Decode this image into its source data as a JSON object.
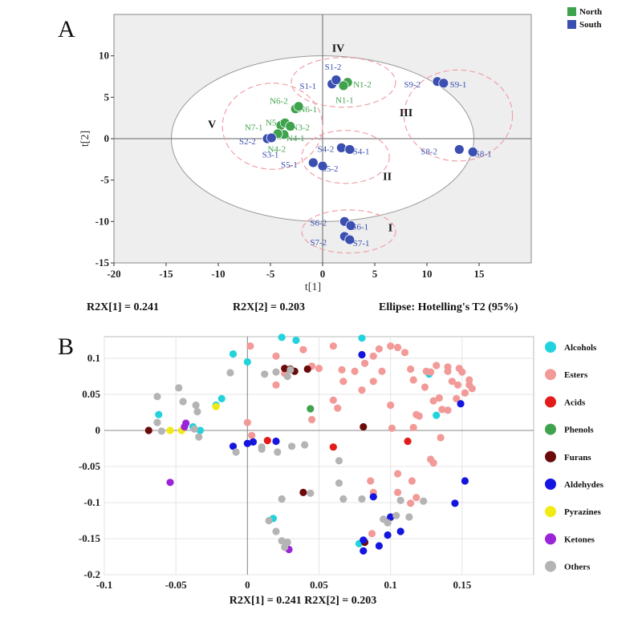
{
  "chart_data": [
    {
      "panel": "A",
      "type": "scatter",
      "xlabel": "t[1]",
      "ylabel": "t[2]",
      "xlim": [
        -20,
        20
      ],
      "ylim": [
        -15,
        15
      ],
      "xticks": [
        -20,
        -15,
        -10,
        -5,
        0,
        5,
        10,
        15
      ],
      "yticks": [
        -15,
        -10,
        -5,
        0,
        5,
        10
      ],
      "legend": {
        "placement": "top-right",
        "entries": [
          {
            "name": "North",
            "color": "#3fa34d"
          },
          {
            "name": "South",
            "color": "#3a4fb0"
          }
        ]
      },
      "ellipse": {
        "center": [
          0,
          0
        ],
        "rx": 14.5,
        "ry": 10
      },
      "stats": [
        "R2X[1] = 0.241",
        "R2X[2] = 0.203",
        "Ellipse: Hotelling's T2 (95%)"
      ],
      "groups": [
        {
          "name": "I",
          "cx": 2.5,
          "cy": -11.2,
          "rx": 4.5,
          "ry": 2.6,
          "label": [
            6.5,
            -11.2
          ]
        },
        {
          "name": "II",
          "cx": 2.2,
          "cy": -2.2,
          "rx": 4.2,
          "ry": 3.2,
          "label": [
            6.2,
            -5
          ]
        },
        {
          "name": "III",
          "cx": 13,
          "cy": 2.8,
          "rx": 5.2,
          "ry": 5.5,
          "label": [
            8,
            2.7
          ]
        },
        {
          "name": "IV",
          "cx": 2,
          "cy": 6.8,
          "rx": 5,
          "ry": 3,
          "label": [
            1.5,
            10.5
          ]
        },
        {
          "name": "V",
          "cx": -4.8,
          "cy": 1.5,
          "rx": 4.8,
          "ry": 5.2,
          "label": [
            -10.6,
            1.3
          ]
        }
      ],
      "points": [
        {
          "id": "S1-1",
          "group": "South",
          "x": 0.9,
          "y": 6.6,
          "lx": -1.4,
          "ly": 6.4
        },
        {
          "id": "S1-2",
          "group": "South",
          "x": 1.3,
          "y": 7.1,
          "lx": 1,
          "ly": 8.7
        },
        {
          "id": "N1-2",
          "group": "North",
          "x": 2.4,
          "y": 6.8,
          "lx": 3.8,
          "ly": 6.6
        },
        {
          "id": "N1-1",
          "group": "North",
          "x": 2.0,
          "y": 6.4,
          "lx": 2.1,
          "ly": 4.7
        },
        {
          "id": "S9-2",
          "group": "South",
          "x": 11,
          "y": 6.9,
          "lx": 8.6,
          "ly": 6.6
        },
        {
          "id": "S9-1",
          "group": "South",
          "x": 11.6,
          "y": 6.7,
          "lx": 13,
          "ly": 6.6
        },
        {
          "id": "N6-2",
          "group": "North",
          "x": -2.6,
          "y": 3.6,
          "lx": -4.2,
          "ly": 4.6
        },
        {
          "id": "N6-1",
          "group": "North",
          "x": -2.3,
          "y": 3.9,
          "lx": -1.4,
          "ly": 3.6
        },
        {
          "id": "N7-1",
          "group": "North",
          "x": -4.0,
          "y": 1.6,
          "lx": -6.6,
          "ly": 1.4
        },
        {
          "id": "N5-1",
          "group": "North",
          "x": -3.6,
          "y": 1.9,
          "lx": -4.6,
          "ly": 2.0
        },
        {
          "id": "N3-2",
          "group": "North",
          "x": -3.1,
          "y": 1.5,
          "lx": -2.1,
          "ly": 1.4
        },
        {
          "id": "N4-1",
          "group": "North",
          "x": -3.7,
          "y": 0.5,
          "lx": -2.6,
          "ly": 0.1
        },
        {
          "id": "N4-2",
          "group": "North",
          "x": -4.3,
          "y": 0.6,
          "lx": -4.4,
          "ly": -1.2
        },
        {
          "id": "S2-2",
          "group": "South",
          "x": -5.3,
          "y": 0.0,
          "lx": -7.2,
          "ly": -0.3
        },
        {
          "id": "S3-1",
          "group": "South",
          "x": -4.9,
          "y": 0.1,
          "lx": -5.0,
          "ly": -1.9
        },
        {
          "id": "S4-2",
          "group": "South",
          "x": 1.8,
          "y": -1.1,
          "lx": 0.3,
          "ly": -1.2
        },
        {
          "id": "S4-1",
          "group": "South",
          "x": 2.6,
          "y": -1.3,
          "lx": 3.7,
          "ly": -1.5
        },
        {
          "id": "S5-1",
          "group": "South",
          "x": -0.9,
          "y": -2.9,
          "lx": -3.2,
          "ly": -3.1
        },
        {
          "id": "S5-2",
          "group": "South",
          "x": 0.0,
          "y": -3.3,
          "lx": 0.7,
          "ly": -3.6
        },
        {
          "id": "S8-2",
          "group": "South",
          "x": 13.1,
          "y": -1.3,
          "lx": 10.2,
          "ly": -1.5
        },
        {
          "id": "S8-1",
          "group": "South",
          "x": 14.4,
          "y": -1.6,
          "lx": 15.4,
          "ly": -1.8
        },
        {
          "id": "S6-2",
          "group": "South",
          "x": 2.1,
          "y": -10.0,
          "lx": -0.4,
          "ly": -10.1
        },
        {
          "id": "S6-1",
          "group": "South",
          "x": 2.7,
          "y": -10.5,
          "lx": 3.6,
          "ly": -10.6
        },
        {
          "id": "S7-2",
          "group": "South",
          "x": 2.1,
          "y": -11.8,
          "lx": -0.4,
          "ly": -12.5
        },
        {
          "id": "S7-1",
          "group": "South",
          "x": 2.6,
          "y": -12.2,
          "lx": 3.7,
          "ly": -12.6
        }
      ]
    },
    {
      "panel": "B",
      "type": "scatter",
      "xlabel": "R2X[1] = 0.241 R2X[2] = 0.203",
      "ylabel": "",
      "xlim": [
        -0.1,
        0.2
      ],
      "ylim": [
        -0.2,
        0.13
      ],
      "xticks": [
        -0.1,
        -0.05,
        0,
        0.05,
        0.1,
        0.15
      ],
      "yticks": [
        -0.2,
        -0.15,
        -0.1,
        -0.05,
        0,
        0.05,
        0.1
      ],
      "legend": {
        "placement": "right",
        "entries": [
          {
            "name": "Alcohols",
            "color": "#22d3dd"
          },
          {
            "name": "Esters",
            "color": "#f29a98"
          },
          {
            "name": "Acids",
            "color": "#e41b1b"
          },
          {
            "name": "Phenols",
            "color": "#3fa34d"
          },
          {
            "name": "Furans",
            "color": "#6b0a0a"
          },
          {
            "name": "Aldehydes",
            "color": "#1515e0"
          },
          {
            "name": "Pyrazines",
            "color": "#f2ea13"
          },
          {
            "name": "Ketones",
            "color": "#9a25d8"
          },
          {
            "name": "Others",
            "color": "#b4b4b4"
          }
        ]
      },
      "series": [
        {
          "name": "Alcohols",
          "points": [
            [
              0.024,
              0.129
            ],
            [
              0.034,
              0.125
            ],
            [
              0.08,
              0.128
            ],
            [
              -0.01,
              0.106
            ],
            [
              0.0,
              0.095
            ],
            [
              -0.018,
              0.044
            ],
            [
              -0.022,
              0.035
            ],
            [
              -0.062,
              0.022
            ],
            [
              -0.038,
              0.005
            ],
            [
              -0.033,
              0.0
            ],
            [
              0.018,
              -0.122
            ],
            [
              0.078,
              -0.157
            ],
            [
              0.127,
              0.078
            ],
            [
              0.132,
              0.021
            ]
          ]
        },
        {
          "name": "Esters",
          "points": [
            [
              0.002,
              0.117
            ],
            [
              0.02,
              0.103
            ],
            [
              0.039,
              0.112
            ],
            [
              0.06,
              0.117
            ],
            [
              0.088,
              0.103
            ],
            [
              0.092,
              0.113
            ],
            [
              0.1,
              0.117
            ],
            [
              0.105,
              0.115
            ],
            [
              0.11,
              0.108
            ],
            [
              0.114,
              0.085
            ],
            [
              0.116,
              0.07
            ],
            [
              0.125,
              0.082
            ],
            [
              0.132,
              0.09
            ],
            [
              0.14,
              0.088
            ],
            [
              0.14,
              0.082
            ],
            [
              0.148,
              0.086
            ],
            [
              0.15,
              0.081
            ],
            [
              0.155,
              0.07
            ],
            [
              0.157,
              0.058
            ],
            [
              0.155,
              0.063
            ],
            [
              0.152,
              0.052
            ],
            [
              0.146,
              0.044
            ],
            [
              0.14,
              0.028
            ],
            [
              0.136,
              0.029
            ],
            [
              0.134,
              0.045
            ],
            [
              0.13,
              0.041
            ],
            [
              0.128,
              0.081
            ],
            [
              0.124,
              0.06
            ],
            [
              0.143,
              0.068
            ],
            [
              0.147,
              0.063
            ],
            [
              0.082,
              0.093
            ],
            [
              0.075,
              0.082
            ],
            [
              0.066,
              0.084
            ],
            [
              0.05,
              0.086
            ],
            [
              0.045,
              0.089
            ],
            [
              0.08,
              0.056
            ],
            [
              0.067,
              0.068
            ],
            [
              0.088,
              0.068
            ],
            [
              0.094,
              0.082
            ],
            [
              0.06,
              0.042
            ],
            [
              0.063,
              0.031
            ],
            [
              0.045,
              0.015
            ],
            [
              0.02,
              0.063
            ],
            [
              0.0,
              0.011
            ],
            [
              0.003,
              -0.007
            ],
            [
              0.1,
              0.035
            ],
            [
              0.12,
              0.02
            ],
            [
              0.118,
              0.022
            ],
            [
              0.116,
              0.004
            ],
            [
              0.101,
              0.003
            ],
            [
              0.135,
              -0.01
            ],
            [
              0.13,
              -0.045
            ],
            [
              0.128,
              -0.04
            ],
            [
              0.105,
              -0.06
            ],
            [
              0.115,
              -0.07
            ],
            [
              0.118,
              -0.093
            ],
            [
              0.114,
              -0.101
            ],
            [
              0.105,
              -0.086
            ],
            [
              0.088,
              -0.086
            ],
            [
              0.086,
              -0.07
            ],
            [
              0.1,
              -0.121
            ],
            [
              0.087,
              -0.143
            ],
            [
              0.026,
              0.079
            ]
          ]
        },
        {
          "name": "Acids",
          "points": [
            [
              0.06,
              -0.023
            ],
            [
              0.112,
              -0.015
            ],
            [
              0.014,
              -0.014
            ]
          ]
        },
        {
          "name": "Phenols",
          "points": [
            [
              0.044,
              0.03
            ]
          ]
        },
        {
          "name": "Furans",
          "points": [
            [
              0.03,
              0.085
            ],
            [
              0.042,
              0.085
            ],
            [
              0.033,
              0.082
            ],
            [
              0.081,
              0.005
            ],
            [
              -0.069,
              0.0
            ],
            [
              0.039,
              -0.086
            ],
            [
              0.082,
              -0.155
            ],
            [
              0.026,
              0.086
            ]
          ]
        },
        {
          "name": "Aldehydes",
          "points": [
            [
              0.08,
              0.105
            ],
            [
              -0.01,
              -0.022
            ],
            [
              0.004,
              -0.016
            ],
            [
              0.0,
              -0.018
            ],
            [
              0.02,
              -0.015
            ],
            [
              0.088,
              -0.092
            ],
            [
              0.098,
              -0.145
            ],
            [
              0.1,
              -0.12
            ],
            [
              0.107,
              -0.14
            ],
            [
              0.092,
              -0.16
            ],
            [
              0.081,
              -0.152
            ],
            [
              0.081,
              -0.167
            ],
            [
              0.145,
              -0.101
            ],
            [
              0.152,
              -0.07
            ],
            [
              0.149,
              0.037
            ]
          ]
        },
        {
          "name": "Pyrazines",
          "points": [
            [
              -0.054,
              0.0
            ],
            [
              -0.046,
              0.0
            ],
            [
              -0.022,
              0.033
            ]
          ]
        },
        {
          "name": "Ketones",
          "points": [
            [
              -0.054,
              -0.072
            ],
            [
              -0.043,
              0.01
            ],
            [
              0.029,
              -0.165
            ],
            [
              -0.044,
              0.005
            ]
          ]
        },
        {
          "name": "Others",
          "points": [
            [
              -0.06,
              -0.001
            ],
            [
              -0.063,
              0.047
            ],
            [
              -0.063,
              0.011
            ],
            [
              -0.048,
              0.059
            ],
            [
              -0.045,
              0.04
            ],
            [
              -0.036,
              0.035
            ],
            [
              -0.035,
              0.026
            ],
            [
              -0.037,
              0.002
            ],
            [
              -0.034,
              -0.009
            ],
            [
              -0.012,
              0.08
            ],
            [
              -0.008,
              -0.03
            ],
            [
              0.01,
              -0.026
            ],
            [
              0.012,
              0.078
            ],
            [
              0.02,
              0.081
            ],
            [
              0.021,
              -0.03
            ],
            [
              0.031,
              -0.022
            ],
            [
              0.028,
              0.075
            ],
            [
              0.01,
              -0.023
            ],
            [
              0.064,
              -0.042
            ],
            [
              0.067,
              -0.095
            ],
            [
              0.08,
              -0.095
            ],
            [
              0.107,
              -0.097
            ],
            [
              0.113,
              -0.12
            ],
            [
              0.123,
              -0.098
            ],
            [
              0.104,
              -0.118
            ],
            [
              0.095,
              -0.123
            ],
            [
              0.098,
              -0.128
            ],
            [
              0.02,
              -0.14
            ],
            [
              0.024,
              -0.153
            ],
            [
              0.026,
              -0.162
            ],
            [
              0.028,
              -0.155
            ],
            [
              0.015,
              -0.125
            ],
            [
              0.044,
              -0.087
            ],
            [
              0.064,
              -0.073
            ],
            [
              0.024,
              -0.095
            ],
            [
              0.04,
              -0.02
            ],
            [
              0.03,
              0.084
            ]
          ]
        }
      ]
    }
  ]
}
